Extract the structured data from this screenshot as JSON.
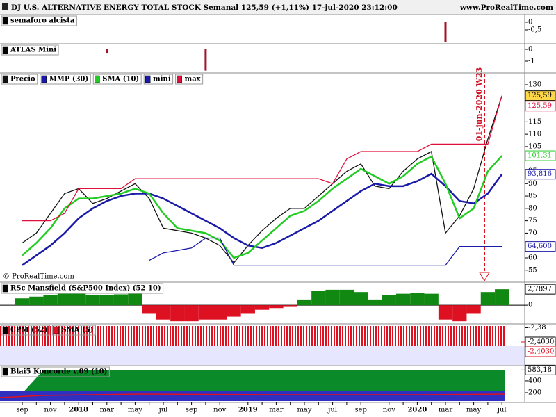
{
  "header": {
    "title": "DJ U.S. ALTERNATIVE ENERGY TOTAL STOCK Semanal 125,59 (+1,11%) 17-jul-2020 23:12:00",
    "site": "www.ProRealTime.com"
  },
  "chart_data": [
    {
      "type": "bar",
      "title": "semaforo alcista",
      "color": "#a0142a",
      "values": [
        null,
        null,
        null,
        null,
        null,
        null,
        null,
        null,
        null,
        null,
        null,
        null,
        null,
        null,
        null,
        null,
        null,
        null,
        null,
        null,
        null,
        null,
        null,
        null,
        null,
        null,
        null,
        null,
        null,
        null,
        -1.3,
        null,
        null,
        null,
        null
      ],
      "ylim": [
        -1.36,
        0.45
      ],
      "yticks": [
        0,
        {
          "value": -0.5,
          "label": "-0,5"
        }
      ]
    },
    {
      "type": "bar",
      "title": "ATLAS Mini",
      "color": "#a0142a",
      "values": [
        null,
        null,
        null,
        null,
        null,
        null,
        -0.3,
        null,
        null,
        null,
        null,
        null,
        null,
        -1.8,
        null,
        null,
        null,
        null,
        null,
        null,
        null,
        null,
        null,
        null,
        null,
        null,
        null,
        null,
        null,
        null,
        null,
        null,
        null,
        null,
        null
      ],
      "ylim": [
        -1.88,
        0.41
      ],
      "yticks": [
        0,
        -1
      ]
    },
    {
      "type": "line",
      "annotation": "01-jun-2020 W23",
      "copyright": "© ProRealTime.com",
      "categories": [
        "sep",
        null,
        "nov",
        null,
        "2018",
        null,
        "mar",
        null,
        "may",
        null,
        "jul",
        null,
        "sep",
        null,
        "nov",
        null,
        "2019",
        null,
        "mar",
        null,
        "may",
        null,
        "jul",
        null,
        "sep",
        null,
        "nov",
        null,
        "2020",
        null,
        "mar",
        null,
        "may",
        null,
        "jul"
      ],
      "series": [
        {
          "name": "Precio",
          "color": "#111111",
          "values": [
            66,
            70,
            78,
            86,
            88,
            82,
            84,
            87,
            90,
            84,
            72,
            71,
            70,
            68,
            65,
            58,
            65,
            71,
            76,
            80,
            80,
            85,
            90,
            95,
            98,
            89,
            88,
            95,
            100,
            103,
            70,
            77,
            88,
            108,
            125.59
          ],
          "last_label": "125,59"
        },
        {
          "name": "MMP (30)",
          "color": "#1a1aa8",
          "values": [
            57,
            61,
            65,
            70,
            76,
            80,
            83,
            85,
            86,
            86,
            84,
            81,
            78,
            75,
            72,
            68,
            65,
            64,
            66,
            69,
            72,
            75,
            79,
            83,
            87,
            90,
            89,
            89,
            91,
            94,
            89,
            83,
            82,
            86,
            93.816
          ],
          "last_label": "93,816"
        },
        {
          "name": "SMA (10)",
          "color": "#22cc22",
          "values": [
            61,
            66,
            72,
            80,
            84,
            84,
            85,
            86,
            88,
            86,
            78,
            72,
            71,
            70,
            67,
            60,
            62,
            67,
            72,
            77,
            79,
            83,
            88,
            92,
            96,
            93,
            90,
            93,
            98,
            101,
            90,
            76,
            80,
            95,
            101.31
          ],
          "last_label": "101,31"
        },
        {
          "name": "mini",
          "color": "#1a1aa8",
          "values": [
            null,
            null,
            null,
            null,
            null,
            null,
            null,
            null,
            null,
            59,
            62,
            63,
            64,
            68,
            68,
            57,
            57,
            57,
            57,
            57,
            57,
            57,
            57,
            57,
            57,
            57,
            57,
            57,
            57,
            57,
            57,
            64.6,
            64.6,
            64.6,
            64.6
          ],
          "last_label": "64,600"
        },
        {
          "name": "max",
          "color": "#e0103c",
          "values": [
            75,
            75,
            75,
            78,
            88,
            88,
            88,
            88,
            92,
            92,
            92,
            92,
            92,
            92,
            92,
            92,
            92,
            92,
            92,
            92,
            92,
            92,
            90,
            100,
            103,
            103,
            103,
            103,
            103,
            106,
            106,
            106,
            106,
            106,
            125.59
          ],
          "last_label": "125,59"
        }
      ],
      "ylim": [
        51,
        134.5
      ],
      "yticks": [
        55,
        60,
        65,
        70,
        75,
        80,
        85,
        90,
        95,
        100,
        105,
        110,
        115,
        120,
        125,
        130
      ]
    },
    {
      "type": "bar",
      "title": "RSc Mansfield (S&P500 Index) (52 10)",
      "colors": {
        "positive": "#118811",
        "negative": "#dd1122"
      },
      "values": [
        1.2,
        1.5,
        1.8,
        2,
        2,
        1.8,
        1.8,
        1.9,
        2,
        -1.5,
        -2.5,
        -2.8,
        -2.8,
        -2.5,
        -2.5,
        -2,
        -1.5,
        -0.8,
        -0.5,
        -0.3,
        1,
        2.5,
        2.7,
        2.7,
        2.3,
        1,
        1.8,
        2,
        2.2,
        2,
        -2.5,
        -2.8,
        -1.5,
        2.3,
        2.7897
      ],
      "last_label": "2,7897",
      "ylim": [
        -2.9,
        3.9
      ],
      "yticks": [
        0
      ]
    },
    {
      "type": "level",
      "series": [
        {
          "name": "CPM (52)",
          "color": "#000000",
          "value": -2.403,
          "value_label": "-2,4030"
        },
        {
          "name": "SMA (5)",
          "color": "#dd1122",
          "value": -2.403,
          "value_label": "-2,4030"
        }
      ],
      "ylim": [
        -2.44,
        -2.375
      ],
      "yticks": [
        {
          "value": -2.38,
          "label": "-2,38"
        }
      ]
    },
    {
      "type": "level",
      "title": "Blai5 Koncorde v.09 (10)",
      "value": 583.18,
      "value_label": "583,18",
      "ylim": [
        47,
        646
      ],
      "yticks": [
        200,
        400
      ]
    }
  ]
}
